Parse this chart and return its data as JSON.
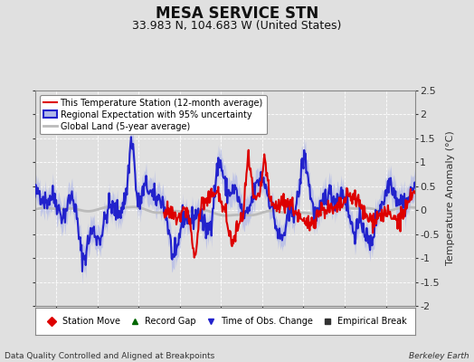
{
  "title": "MESA SERVICE STN",
  "subtitle": "33.983 N, 104.683 W (United States)",
  "ylabel": "Temperature Anomaly (°C)",
  "footer_left": "Data Quality Controlled and Aligned at Breakpoints",
  "footer_right": "Berkeley Earth",
  "xlim": [
    1922.5,
    1968.5
  ],
  "ylim": [
    -2.0,
    2.5
  ],
  "yticks": [
    -2.0,
    -1.5,
    -1.0,
    -0.5,
    0.0,
    0.5,
    1.0,
    1.5,
    2.0,
    2.5
  ],
  "ytick_labels": [
    "-2",
    "-1.5",
    "-1",
    "-0.5",
    "0",
    "0.5",
    "1",
    "1.5",
    "2",
    "2.5"
  ],
  "xticks": [
    1925,
    1930,
    1935,
    1940,
    1945,
    1950,
    1955,
    1960,
    1965
  ],
  "bg_color": "#e0e0e0",
  "plot_bg_color": "#e0e0e0",
  "grid_color": "#ffffff",
  "title_fontsize": 12,
  "subtitle_fontsize": 9,
  "axis_fontsize": 8,
  "ylabel_fontsize": 8,
  "station_color": "#dd0000",
  "regional_color": "#2222cc",
  "regional_fill": "#b0b8e8",
  "global_color": "#bbbbbb",
  "station_lw": 1.5,
  "regional_lw": 1.5,
  "global_lw": 2.0,
  "legend1_entries": [
    {
      "label": "This Temperature Station (12-month average)",
      "color": "#dd0000",
      "lw": 1.5
    },
    {
      "label": "Regional Expectation with 95% uncertainty",
      "color": "#2222cc",
      "lw": 1.5,
      "fill_color": "#b0b8e8"
    },
    {
      "label": "Global Land (5-year average)",
      "color": "#bbbbbb",
      "lw": 2.0
    }
  ],
  "legend2_entries": [
    {
      "label": "Station Move",
      "marker": "D",
      "color": "#dd0000"
    },
    {
      "label": "Record Gap",
      "marker": "^",
      "color": "#006600"
    },
    {
      "label": "Time of Obs. Change",
      "marker": "v",
      "color": "#2222cc"
    },
    {
      "label": "Empirical Break",
      "marker": "s",
      "color": "#333333"
    }
  ]
}
